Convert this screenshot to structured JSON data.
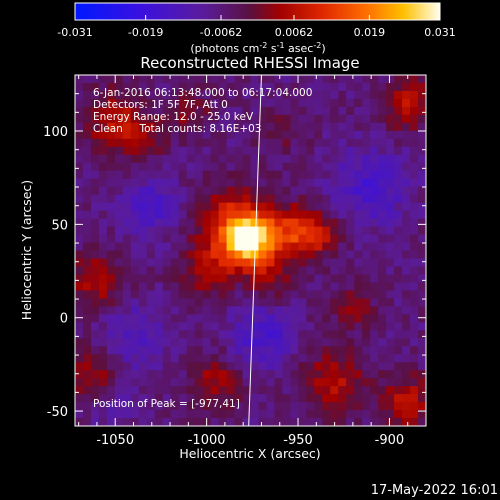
{
  "chart_data": {
    "type": "heatmap",
    "title": "Reconstructed RHESSI Image",
    "xlabel": "Heliocentric X (arcsec)",
    "ylabel": "Heliocentric Y (arcsec)",
    "xlim": [
      -1072,
      -880
    ],
    "ylim": [
      -58,
      130
    ],
    "x_ticks": [
      "-1050",
      "-1000",
      "-950",
      "-900"
    ],
    "x_tick_values": [
      -1050,
      -1000,
      -950,
      -900
    ],
    "y_ticks": [
      "-50",
      "0",
      "50",
      "100"
    ],
    "y_tick_values": [
      -50,
      0,
      50,
      100
    ],
    "colorbar": {
      "range": [
        -0.031,
        0.031
      ],
      "ticks": [
        "-0.031",
        "-0.019",
        "-0.0062",
        "0.0062",
        "0.019",
        "0.031"
      ],
      "tick_values": [
        -0.031,
        -0.019,
        -0.0062,
        0.0062,
        0.019,
        0.031
      ],
      "label_base": "(photons cm",
      "label_exp1": "-2",
      "label_mid": " s",
      "label_exp2": "-1",
      "label_mid2": " asec",
      "label_exp3": "-2",
      "label_end": ")"
    },
    "sources": [
      {
        "x": -977,
        "y": 41,
        "amp": 0.031,
        "sigma": 9
      },
      {
        "x": -985,
        "y": 50,
        "amp": 0.016,
        "sigma": 14
      },
      {
        "x": -955,
        "y": 45,
        "amp": 0.014,
        "sigma": 10
      },
      {
        "x": -940,
        "y": 45,
        "amp": 0.012,
        "sigma": 9
      },
      {
        "x": -1000,
        "y": 25,
        "amp": 0.01,
        "sigma": 10
      },
      {
        "x": -965,
        "y": 20,
        "amp": 0.008,
        "sigma": 8
      },
      {
        "x": -1050,
        "y": 105,
        "amp": 0.012,
        "sigma": 12
      },
      {
        "x": -1035,
        "y": 95,
        "amp": 0.008,
        "sigma": 8
      },
      {
        "x": -1010,
        "y": 110,
        "amp": 0.008,
        "sigma": 8
      },
      {
        "x": -890,
        "y": 115,
        "amp": 0.012,
        "sigma": 10
      },
      {
        "x": -960,
        "y": 100,
        "amp": 0.005,
        "sigma": 9
      },
      {
        "x": -1060,
        "y": 20,
        "amp": 0.012,
        "sigma": 10
      },
      {
        "x": -1065,
        "y": -30,
        "amp": 0.01,
        "sigma": 10
      },
      {
        "x": -995,
        "y": -35,
        "amp": 0.01,
        "sigma": 10
      },
      {
        "x": -930,
        "y": -35,
        "amp": 0.012,
        "sigma": 12
      },
      {
        "x": -890,
        "y": -45,
        "amp": 0.012,
        "sigma": 10
      },
      {
        "x": -920,
        "y": 5,
        "amp": 0.008,
        "sigma": 8
      },
      {
        "x": -1030,
        "y": 60,
        "amp": -0.008,
        "sigma": 12
      },
      {
        "x": -910,
        "y": 70,
        "amp": -0.01,
        "sigma": 14
      },
      {
        "x": -1040,
        "y": -10,
        "amp": -0.008,
        "sigma": 12
      },
      {
        "x": -970,
        "y": -10,
        "amp": -0.01,
        "sigma": 12
      },
      {
        "x": -1050,
        "y": -50,
        "amp": -0.005,
        "sigma": 8
      }
    ],
    "limb_line": {
      "x1": -970,
      "y1": 130,
      "x2": -977,
      "y2": -58
    },
    "annotations": {
      "line1": "6-Jan-2016 06:13:48.000 to 06:17:04.000",
      "line2": "Detectors: 1F 5F 7F, Att 0",
      "line3": "Energy Range: 12.0 - 25.0 keV",
      "line4": "Clean     Total counts: 8.16E+03",
      "peak": "Position of Peak = [-977,41]"
    }
  },
  "footer": {
    "timestamp": "17-May-2022 16:01"
  }
}
